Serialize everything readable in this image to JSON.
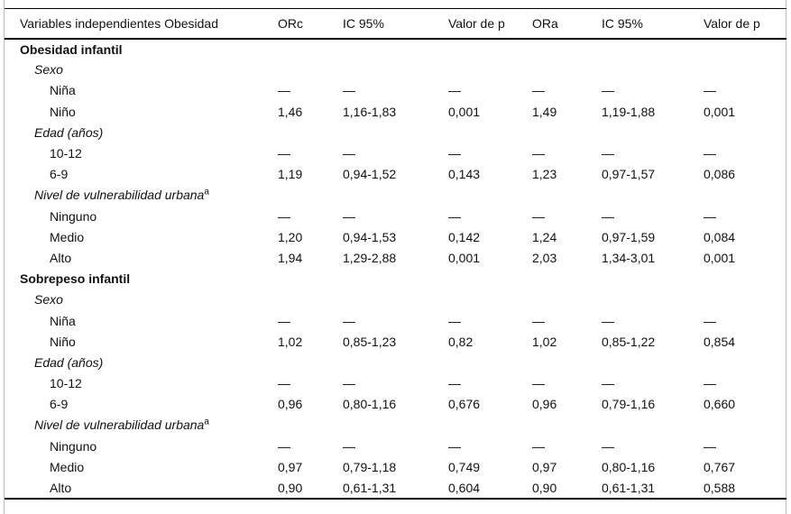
{
  "table": {
    "headers": [
      "Variables independientes Obesidad",
      "ORc",
      "IC 95%",
      "Valor de p",
      "ORa",
      "IC 95%",
      "Valor de p"
    ],
    "rows": [
      {
        "label": "Obesidad infantil",
        "style": "section",
        "cells": null
      },
      {
        "label": "Sexo",
        "style": "group",
        "cells": null
      },
      {
        "label": "Niña",
        "style": "item",
        "cells": [
          "—",
          "—",
          "—",
          "—",
          "—",
          "—"
        ]
      },
      {
        "label": "Niño",
        "style": "item",
        "cells": [
          "1,46",
          "1,16-1,83",
          "0,001",
          "1,49",
          "1,19-1,88",
          "0,001"
        ]
      },
      {
        "label": "Edad (años)",
        "style": "group",
        "cells": null
      },
      {
        "label": "10-12",
        "style": "item",
        "cells": [
          "—",
          "—",
          "—",
          "—",
          "—",
          "—"
        ]
      },
      {
        "label": "6-9",
        "style": "item",
        "cells": [
          "1,19",
          "0,94-1,52",
          "0,143",
          "1,23",
          "0,97-1,57",
          "0,086"
        ]
      },
      {
        "label": "Nivel de vulnerabilidad urbana",
        "sup": "a",
        "style": "group",
        "cells": null
      },
      {
        "label": "Ninguno",
        "style": "item",
        "cells": [
          "—",
          "—",
          "—",
          "—",
          "—",
          "—"
        ]
      },
      {
        "label": "Medio",
        "style": "item",
        "cells": [
          "1,20",
          "0,94-1,53",
          "0,142",
          "1,24",
          "0,97-1,59",
          "0,084"
        ]
      },
      {
        "label": "Alto",
        "style": "item",
        "cells": [
          "1,94",
          "1,29-2,88",
          "0,001",
          "2,03",
          "1,34-3,01",
          "0,001"
        ]
      },
      {
        "label": "Sobrepeso infantil",
        "style": "section",
        "cells": null
      },
      {
        "label": "Sexo",
        "style": "group",
        "cells": null
      },
      {
        "label": "Niña",
        "style": "item",
        "cells": [
          "—",
          "—",
          "—",
          "—",
          "—",
          "—"
        ]
      },
      {
        "label": "Niño",
        "style": "item",
        "cells": [
          "1,02",
          "0,85-1,23",
          "0,82",
          "1,02",
          "0,85-1,22",
          "0,854"
        ]
      },
      {
        "label": "Edad (años)",
        "style": "group",
        "cells": null
      },
      {
        "label": "10-12",
        "style": "item",
        "cells": [
          "—",
          "—",
          "—",
          "—",
          "—",
          "—"
        ]
      },
      {
        "label": "6-9",
        "style": "item",
        "cells": [
          "0,96",
          "0,80-1,16",
          "0,676",
          "0,96",
          "0,79-1,16",
          "0,660"
        ]
      },
      {
        "label": "Nivel de vulnerabilidad urbana",
        "sup": "a",
        "style": "group",
        "cells": null
      },
      {
        "label": "Ninguno",
        "style": "item",
        "cells": [
          "—",
          "—",
          "—",
          "—",
          "—",
          "—"
        ]
      },
      {
        "label": "Medio",
        "style": "item",
        "cells": [
          "0,97",
          "0,79-1,18",
          "0,749",
          "0,97",
          "0,80-1,16",
          "0,767"
        ]
      },
      {
        "label": "Alto",
        "style": "item",
        "cells": [
          "0,90",
          "0,61-1,31",
          "0,604",
          "0,90",
          "0,61-1,31",
          "0,588"
        ]
      }
    ],
    "colors": {
      "rule": "#000000",
      "page_edge": "#bcbcbc",
      "text": "#111111",
      "background": "#ffffff"
    }
  }
}
